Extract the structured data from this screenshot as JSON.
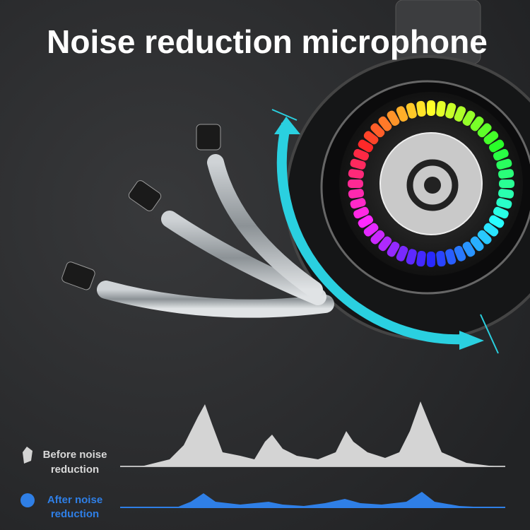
{
  "header": {
    "title": "Noise reduction microphone"
  },
  "legend": [
    {
      "lines": [
        "Before noise",
        "reduction"
      ]
    },
    {
      "lines": [
        "After noise",
        "reduction"
      ]
    }
  ]
}
